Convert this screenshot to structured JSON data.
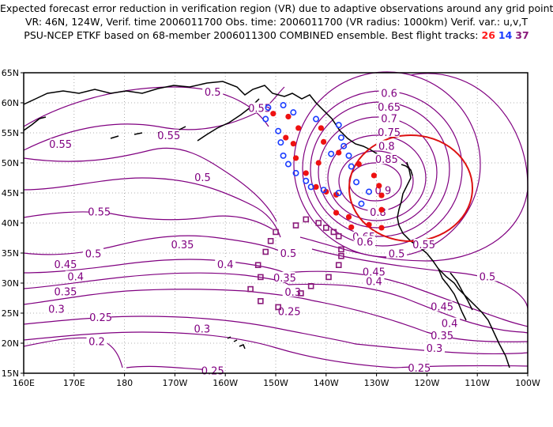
{
  "title": {
    "line1": "Expected forecast error reduction in verification region (VR) due to adaptive observations around any grid point.",
    "line2": "VR: 46N, 124W, Verif. time 2006011700   Obs. time: 2006011700 (VR radius: 1000km)   Verif. var.: u,v,T",
    "line3_prefix": "PSU-NCEP ETKF based on 68-member 2006011300 COMBINED ensemble.   Best flight tracks:",
    "track_red": "26",
    "track_blue": "14",
    "track_purple": "37"
  },
  "axes": {
    "x_ticks": [
      "160E",
      "170E",
      "180",
      "170W",
      "160W",
      "150W",
      "140W",
      "130W",
      "120W",
      "110W",
      "100W"
    ],
    "y_ticks": [
      "15N",
      "20N",
      "25N",
      "30N",
      "35N",
      "40N",
      "45N",
      "50N",
      "55N",
      "60N",
      "65N"
    ]
  },
  "map_extent": {
    "lon": [
      160,
      260
    ],
    "lat": [
      15,
      65
    ]
  },
  "verification_region": {
    "center_lat": 46,
    "center_lon": -124,
    "radius_km": 1000,
    "color": "#dd1111"
  },
  "contour_color": "#800080",
  "contour_labels": [
    {
      "text": "0.6",
      "lon": 232.5,
      "lat": 61.5
    },
    {
      "text": "0.65",
      "lon": 232.5,
      "lat": 59.2
    },
    {
      "text": "0.7",
      "lon": 232.5,
      "lat": 57.3
    },
    {
      "text": "0.75",
      "lon": 232.5,
      "lat": 55.0
    },
    {
      "text": "0.8",
      "lon": 232.0,
      "lat": 52.7
    },
    {
      "text": "0.85",
      "lon": 232.0,
      "lat": 50.5
    },
    {
      "text": "0.9",
      "lon": 231.3,
      "lat": 45.3
    },
    {
      "text": "0.8",
      "lon": 230.3,
      "lat": 41.7
    },
    {
      "text": "0.65",
      "lon": 227.5,
      "lat": 37.6
    },
    {
      "text": "0.6",
      "lon": 227.7,
      "lat": 36.8
    },
    {
      "text": "0.55",
      "lon": 239.4,
      "lat": 36.3
    },
    {
      "text": "0.5",
      "lon": 234.0,
      "lat": 34.8
    },
    {
      "text": "0.5",
      "lon": 212.5,
      "lat": 34.9
    },
    {
      "text": "0.45",
      "lon": 229.5,
      "lat": 31.8
    },
    {
      "text": "0.4",
      "lon": 229.5,
      "lat": 30.2
    },
    {
      "text": "0.35",
      "lon": 211.8,
      "lat": 30.8
    },
    {
      "text": "0.3",
      "lon": 213.4,
      "lat": 28.4
    },
    {
      "text": "0.25",
      "lon": 212.7,
      "lat": 25.2
    },
    {
      "text": "0.3",
      "lon": 195.4,
      "lat": 22.3
    },
    {
      "text": "0.5",
      "lon": 197.5,
      "lat": 61.7
    },
    {
      "text": "0.55",
      "lon": 206.8,
      "lat": 59.0
    },
    {
      "text": "0.55",
      "lon": 188.8,
      "lat": 54.5
    },
    {
      "text": "0.55",
      "lon": 167.3,
      "lat": 53.0
    },
    {
      "text": "0.5",
      "lon": 195.5,
      "lat": 47.5
    },
    {
      "text": "0.55",
      "lon": 175.0,
      "lat": 41.8
    },
    {
      "text": "0.35",
      "lon": 191.5,
      "lat": 36.3
    },
    {
      "text": "0.5",
      "lon": 173.8,
      "lat": 34.8
    },
    {
      "text": "0.45",
      "lon": 168.3,
      "lat": 33.0
    },
    {
      "text": "0.4",
      "lon": 170.3,
      "lat": 31.0
    },
    {
      "text": "0.4",
      "lon": 200.0,
      "lat": 33.0
    },
    {
      "text": "0.35",
      "lon": 168.3,
      "lat": 28.5
    },
    {
      "text": "0.3",
      "lon": 166.5,
      "lat": 25.6
    },
    {
      "text": "0.25",
      "lon": 175.3,
      "lat": 24.2
    },
    {
      "text": "0.2",
      "lon": 174.5,
      "lat": 20.2
    },
    {
      "text": "0.25",
      "lon": 197.5,
      "lat": 15.3
    },
    {
      "text": "0.25",
      "lon": 238.5,
      "lat": 15.8
    },
    {
      "text": "0.3",
      "lon": 241.5,
      "lat": 19.1
    },
    {
      "text": "0.35",
      "lon": 243.0,
      "lat": 21.2
    },
    {
      "text": "0.4",
      "lon": 244.5,
      "lat": 23.2
    },
    {
      "text": "0.45",
      "lon": 243.0,
      "lat": 26.0
    },
    {
      "text": "0.5",
      "lon": 252.0,
      "lat": 31.0
    }
  ],
  "tracks": {
    "red": [
      [
        -150.5,
        58.2
      ],
      [
        -147.5,
        57.7
      ],
      [
        -145.5,
        55.8
      ],
      [
        -141.0,
        55.8
      ],
      [
        -148.0,
        54.2
      ],
      [
        -146.5,
        53.2
      ],
      [
        -140.5,
        53.5
      ],
      [
        -137.5,
        51.7
      ],
      [
        -146.0,
        50.8
      ],
      [
        -141.5,
        50.0
      ],
      [
        -133.5,
        49.8
      ],
      [
        -144.0,
        48.3
      ],
      [
        -130.5,
        47.9
      ],
      [
        -142.0,
        46.0
      ],
      [
        -140.0,
        45.2
      ],
      [
        -138.0,
        44.7
      ],
      [
        -129.5,
        46.2
      ],
      [
        -129.0,
        44.6
      ],
      [
        -138.0,
        41.7
      ],
      [
        -135.5,
        41.0
      ],
      [
        -129.0,
        42.2
      ],
      [
        -135.0,
        39.3
      ],
      [
        -131.5,
        39.7
      ],
      [
        -129.0,
        39.2
      ]
    ],
    "blue": [
      [
        -151.5,
        59.2
      ],
      [
        -148.5,
        59.6
      ],
      [
        -146.5,
        58.4
      ],
      [
        -142.0,
        57.3
      ],
      [
        -152.0,
        57.3
      ],
      [
        -149.5,
        55.3
      ],
      [
        -137.5,
        56.3
      ],
      [
        -149.0,
        53.4
      ],
      [
        -137.0,
        54.2
      ],
      [
        -136.5,
        52.8
      ],
      [
        -148.5,
        51.2
      ],
      [
        -139.0,
        51.5
      ],
      [
        -135.5,
        51.2
      ],
      [
        -147.5,
        49.8
      ],
      [
        -135.0,
        49.4
      ],
      [
        -146.0,
        48.3
      ],
      [
        -134.0,
        46.8
      ],
      [
        -144.0,
        47.0
      ],
      [
        -143.0,
        46.0
      ],
      [
        -140.5,
        45.5
      ],
      [
        -137.5,
        45.0
      ],
      [
        -131.5,
        45.2
      ],
      [
        -133.0,
        43.2
      ]
    ],
    "purple": [
      [
        -144.0,
        40.6
      ],
      [
        -146.0,
        39.6
      ],
      [
        -141.5,
        40.0
      ],
      [
        -140.0,
        39.2
      ],
      [
        -150.0,
        38.5
      ],
      [
        -138.5,
        38.5
      ],
      [
        -137.5,
        37.8
      ],
      [
        -151.0,
        37.0
      ],
      [
        -152.0,
        35.2
      ],
      [
        -137.0,
        35.6
      ],
      [
        -137.0,
        34.5
      ],
      [
        -153.5,
        33.0
      ],
      [
        -137.5,
        33.0
      ],
      [
        -153.0,
        31.0
      ],
      [
        -139.5,
        31.0
      ],
      [
        -155.0,
        29.0
      ],
      [
        -143.0,
        29.5
      ],
      [
        -145.0,
        28.3
      ],
      [
        -153.0,
        27.0
      ],
      [
        -149.5,
        26.0
      ]
    ]
  },
  "colors": {
    "red": "#ee1111",
    "blue": "#1a3cff",
    "purple": "#8a1a7a",
    "grid": "#999999"
  }
}
